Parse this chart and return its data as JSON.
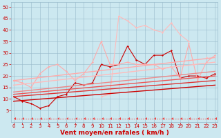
{
  "bg_color": "#cce8f0",
  "grid_color": "#99bbcc",
  "line_color_dark": "#cc0000",
  "xlabel": "Vent moyen/en rafales ( km/h )",
  "xlabel_color": "#cc0000",
  "xlabel_fontsize": 6.5,
  "xtick_fontsize": 5,
  "ytick_fontsize": 5,
  "xlim": [
    -0.3,
    23.3
  ],
  "ylim": [
    0,
    52
  ],
  "xticks": [
    0,
    1,
    2,
    3,
    4,
    5,
    6,
    7,
    8,
    9,
    10,
    11,
    12,
    13,
    14,
    15,
    16,
    17,
    18,
    19,
    20,
    21,
    22,
    23
  ],
  "yticks": [
    5,
    10,
    15,
    20,
    25,
    30,
    35,
    40,
    45,
    50
  ],
  "lines": [
    {
      "x": [
        0,
        1,
        2,
        3,
        4,
        5,
        6,
        7,
        8,
        9,
        10,
        11,
        12,
        13,
        14,
        15,
        16,
        17,
        18,
        19,
        20,
        21,
        22,
        23
      ],
      "y": [
        11,
        9,
        8,
        6,
        7,
        11,
        12,
        17,
        16,
        17,
        25,
        24,
        25,
        33,
        27,
        25,
        29,
        29,
        31,
        19,
        20,
        20,
        19,
        21
      ],
      "color": "#cc0000",
      "lw": 0.8,
      "marker": "D",
      "ms": 1.5,
      "dashed": false
    },
    {
      "x": [
        0,
        1,
        2,
        3,
        4,
        5,
        6,
        7,
        8,
        9,
        10,
        11,
        12,
        13,
        14,
        15,
        16,
        17,
        18,
        19,
        20,
        21,
        22,
        23
      ],
      "y": [
        18,
        17,
        15,
        21,
        24,
        25,
        22,
        18,
        21,
        26,
        35,
        25,
        25,
        26,
        25,
        25,
        25,
        23,
        24,
        19,
        34,
        18,
        26,
        29
      ],
      "color": "#ffaaaa",
      "lw": 0.8,
      "marker": "D",
      "ms": 1.5,
      "dashed": false
    },
    {
      "x": [
        10,
        11,
        12,
        13,
        14,
        15,
        16,
        17,
        18,
        19,
        20,
        21,
        22,
        23
      ],
      "y": [
        11,
        12,
        46,
        44,
        41,
        42,
        40,
        39,
        43,
        38,
        35,
        null,
        28,
        null
      ],
      "color": "#ffbbbb",
      "lw": 0.8,
      "marker": "D",
      "ms": 1.5,
      "dashed": false
    },
    {
      "x": [
        0,
        23
      ],
      "y": [
        18,
        28
      ],
      "color": "#ffaaaa",
      "lw": 1.0,
      "marker": null,
      "ms": 0,
      "dashed": false
    },
    {
      "x": [
        0,
        23
      ],
      "y": [
        16,
        26
      ],
      "color": "#ffbbbb",
      "lw": 1.0,
      "marker": null,
      "ms": 0,
      "dashed": false
    },
    {
      "x": [
        0,
        23
      ],
      "y": [
        13,
        22
      ],
      "color": "#ee8888",
      "lw": 1.0,
      "marker": null,
      "ms": 0,
      "dashed": false
    },
    {
      "x": [
        0,
        23
      ],
      "y": [
        12,
        20
      ],
      "color": "#ee5555",
      "lw": 1.0,
      "marker": null,
      "ms": 0,
      "dashed": false
    },
    {
      "x": [
        0,
        23
      ],
      "y": [
        11,
        18
      ],
      "color": "#dd3333",
      "lw": 1.0,
      "marker": null,
      "ms": 0,
      "dashed": false
    },
    {
      "x": [
        0,
        23
      ],
      "y": [
        9,
        16
      ],
      "color": "#cc0000",
      "lw": 1.0,
      "marker": null,
      "ms": 0,
      "dashed": false
    },
    {
      "x": [
        0,
        1,
        2,
        3,
        4,
        5,
        6,
        7,
        8,
        9,
        10,
        11,
        12,
        13,
        14,
        15,
        16,
        17,
        18,
        19,
        20,
        21,
        22,
        23
      ],
      "y": [
        1.5,
        1.5,
        1.5,
        1.5,
        1.5,
        1.5,
        1.5,
        1.5,
        1.5,
        1.5,
        1.5,
        1.5,
        1.5,
        1.5,
        1.5,
        1.5,
        1.5,
        1.5,
        1.5,
        1.5,
        1.5,
        1.5,
        1.5,
        1.5
      ],
      "color": "#ee4444",
      "lw": 0.6,
      "marker": 4,
      "ms": 3.0,
      "dashed": true
    }
  ]
}
